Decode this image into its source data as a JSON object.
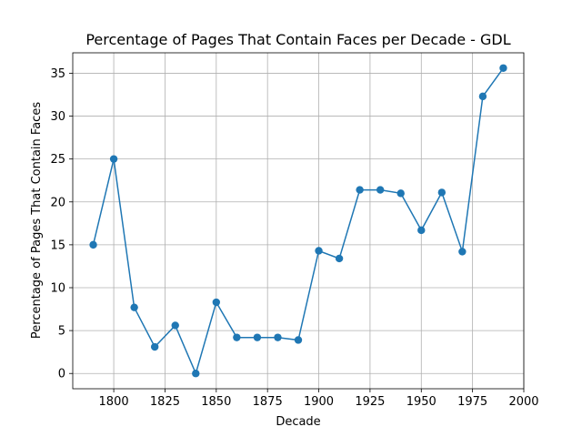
{
  "chart_data": {
    "type": "line",
    "title": "Percentage of Pages That Contain Faces per Decade - GDL",
    "xlabel": "Decade",
    "ylabel": "Percentage of Pages That Contain Faces",
    "x": [
      1790,
      1800,
      1810,
      1820,
      1830,
      1840,
      1850,
      1860,
      1870,
      1880,
      1890,
      1900,
      1910,
      1920,
      1930,
      1940,
      1950,
      1960,
      1970,
      1980,
      1990
    ],
    "series": [
      {
        "values": [
          15.0,
          25.0,
          7.7,
          3.1,
          5.6,
          0.0,
          8.3,
          4.2,
          4.2,
          4.2,
          3.9,
          14.3,
          13.4,
          21.4,
          21.4,
          21.0,
          16.7,
          21.1,
          14.2,
          32.3,
          35.6
        ],
        "color": "#1f77b4"
      }
    ],
    "xticks": [
      1800,
      1825,
      1850,
      1875,
      1900,
      1925,
      1950,
      1975,
      2000
    ],
    "yticks": [
      0,
      5,
      10,
      15,
      20,
      25,
      30,
      35
    ],
    "xlim": [
      1780,
      2000
    ],
    "ylim": [
      -1.78,
      37.38
    ],
    "grid": true,
    "marker": "circle"
  }
}
